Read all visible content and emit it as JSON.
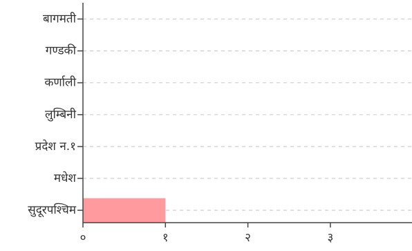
{
  "chart_data": {
    "type": "bar",
    "orientation": "horizontal",
    "categories": [
      "बागमती",
      "गण्डकी",
      "कर्णाली",
      "लुम्बिनी",
      "प्रदेश न.१",
      "मधेश",
      "सुदूरपश्चिम"
    ],
    "values": [
      0,
      0,
      0,
      0,
      0,
      0,
      1
    ],
    "xlim": [
      0,
      4
    ],
    "xticks": [
      0,
      1,
      2,
      3
    ],
    "xtick_labels": [
      "०",
      "१",
      "२",
      "३"
    ],
    "grid": "horizontal dashed",
    "title": "",
    "xlabel": "",
    "ylabel": ""
  },
  "colors": {
    "bar": "#ff9a9e",
    "grid": "#cfcfcf",
    "axis": "#444444",
    "text": "#333333"
  }
}
